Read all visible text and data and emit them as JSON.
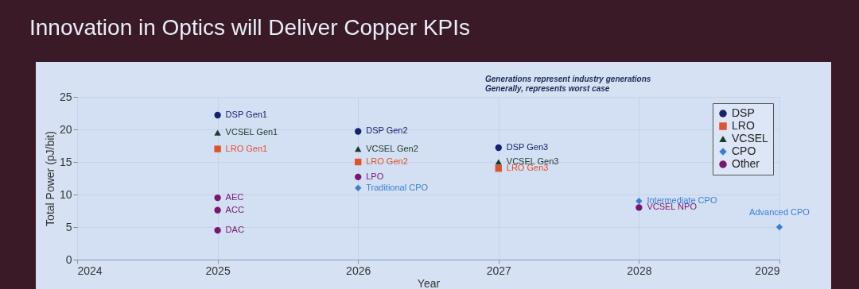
{
  "chart_data": {
    "type": "scatter",
    "title": "Innovation in Optics will Deliver Copper KPIs",
    "xlabel": "Year",
    "ylabel": "Total Power (pJ/bit)",
    "xlim": [
      2024,
      2029
    ],
    "xticks": [
      2024,
      2025,
      2026,
      2027,
      2028,
      2029
    ],
    "ylim": [
      0,
      25
    ],
    "yticks": [
      0,
      5,
      10,
      15,
      20,
      25
    ],
    "grid": true,
    "legend": "top right",
    "series": [
      {
        "name": "DSP",
        "color": "#15226e",
        "marker": "circle",
        "x": [
          2025,
          2026,
          2027
        ],
        "values": [
          22.2,
          19.7,
          17.2
        ]
      },
      {
        "name": "LRO",
        "color": "#e0522a",
        "marker": "square",
        "x": [
          2025,
          2026,
          2027
        ],
        "values": [
          17,
          15,
          14
        ]
      },
      {
        "name": "VCSEL",
        "color": "#1c3a2c",
        "marker": "triangle",
        "x": [
          2025,
          2026,
          2027
        ],
        "values": [
          19.5,
          17,
          15
        ]
      },
      {
        "name": "CPO",
        "color": "#3a7fd6",
        "marker": "diamond",
        "x": [
          2026,
          2028,
          2029
        ],
        "values": [
          11,
          9,
          5
        ]
      },
      {
        "name": "Other",
        "color": "#7a1570",
        "marker": "circle",
        "x": [
          2025,
          2025,
          2025,
          2026,
          2028
        ],
        "values": [
          9.5,
          7.6,
          4.5,
          12.7,
          8
        ]
      }
    ],
    "annotations": [
      "Generations represent industry generations",
      "Generally, represents worst case",
      {
        "text": "DSP Gen1",
        "x": 2025,
        "y": 22.2
      },
      {
        "text": "DSP Gen2",
        "x": 2026,
        "y": 19.7
      },
      {
        "text": "DSP Gen3",
        "x": 2027,
        "y": 17.2
      },
      {
        "text": "LRO Gen1",
        "x": 2025,
        "y": 17
      },
      {
        "text": "LRO Gen2",
        "x": 2026,
        "y": 15
      },
      {
        "text": "LRO Gen3",
        "x": 2027,
        "y": 14
      },
      {
        "text": "VCSEL Gen1",
        "x": 2025,
        "y": 19.5
      },
      {
        "text": "VCSEL Gen2",
        "x": 2026,
        "y": 17
      },
      {
        "text": "VCSEL Gen3",
        "x": 2027,
        "y": 15
      },
      {
        "text": "Traditional CPO",
        "x": 2026,
        "y": 11
      },
      {
        "text": "Intermediate CPO",
        "x": 2028,
        "y": 9
      },
      {
        "text": "Advanced CPO",
        "x": 2029,
        "y": 5
      },
      {
        "text": "AEC",
        "x": 2025,
        "y": 9.5
      },
      {
        "text": "ACC",
        "x": 2025,
        "y": 7.6
      },
      {
        "text": "DAC",
        "x": 2025,
        "y": 4.5
      },
      {
        "text": "LPO",
        "x": 2026,
        "y": 12.7
      },
      {
        "text": "VCSEL NPO",
        "x": 2028,
        "y": 8
      }
    ]
  }
}
